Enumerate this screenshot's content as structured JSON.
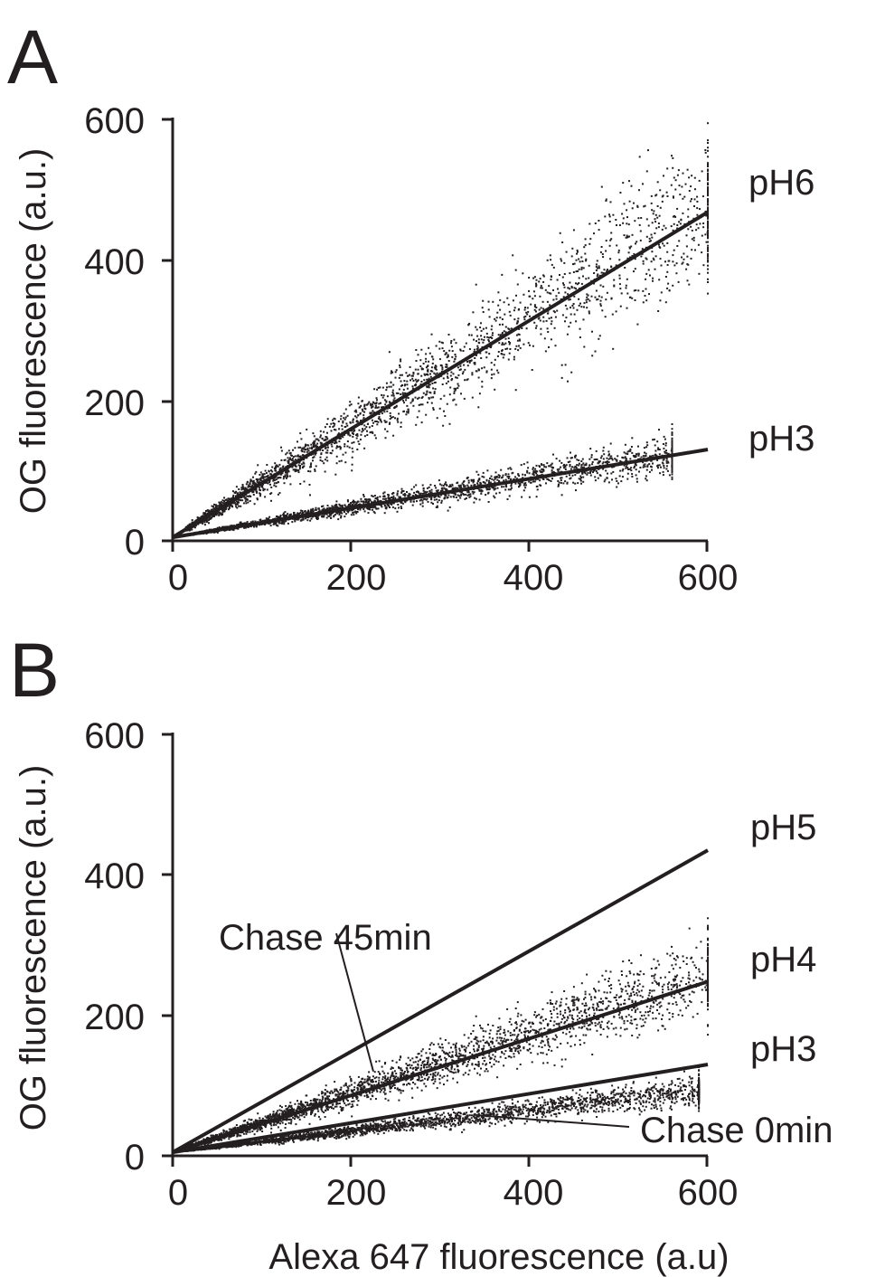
{
  "xlabel": "Alexa 647 fluorescence (a.u)",
  "chart_data": [
    {
      "panel": "A",
      "type": "scatter",
      "ylabel": "OG fluorescence (a.u.)",
      "xlim": [
        0,
        600
      ],
      "ylim": [
        0,
        600
      ],
      "xticks": [
        "0",
        "200",
        "400",
        "600"
      ],
      "yticks": [
        "0",
        "200",
        "400",
        "600"
      ],
      "series": [
        {
          "name": "pH6",
          "fit": {
            "x": [
              0,
              600
            ],
            "y": [
              5,
              468
            ]
          }
        },
        {
          "name": "pH3",
          "fit": {
            "x": [
              0,
              600
            ],
            "y": [
              5,
              130
            ]
          }
        }
      ],
      "scatter_clouds": [
        {
          "slope": 0.78,
          "intercept": 5,
          "xmax": 600,
          "count": 2600
        },
        {
          "slope": 0.21,
          "intercept": 5,
          "xmax": 560,
          "count": 2600
        }
      ],
      "annotations": []
    },
    {
      "panel": "B",
      "type": "scatter",
      "ylabel": "OG fluorescence (a.u.)",
      "xlim": [
        0,
        600
      ],
      "ylim": [
        0,
        600
      ],
      "xticks": [
        "0",
        "200",
        "400",
        "600"
      ],
      "yticks": [
        "0",
        "200",
        "400",
        "600"
      ],
      "series": [
        {
          "name": "pH5",
          "fit": {
            "x": [
              0,
              600
            ],
            "y": [
              5,
              435
            ]
          }
        },
        {
          "name": "pH4",
          "fit": {
            "x": [
              0,
              600
            ],
            "y": [
              5,
              248
            ]
          }
        },
        {
          "name": "pH3",
          "fit": {
            "x": [
              0,
              600
            ],
            "y": [
              5,
              130
            ]
          }
        }
      ],
      "scatter_clouds": [
        {
          "slope": 0.42,
          "intercept": 5,
          "xmax": 600,
          "count": 3000
        },
        {
          "slope": 0.15,
          "intercept": 5,
          "xmax": 590,
          "count": 3000
        }
      ],
      "annotations": [
        {
          "text": "Chase 45min",
          "points_to": [
            225,
            120
          ]
        },
        {
          "text": "Chase 0min",
          "points_to": [
            340,
            58
          ]
        }
      ]
    }
  ]
}
